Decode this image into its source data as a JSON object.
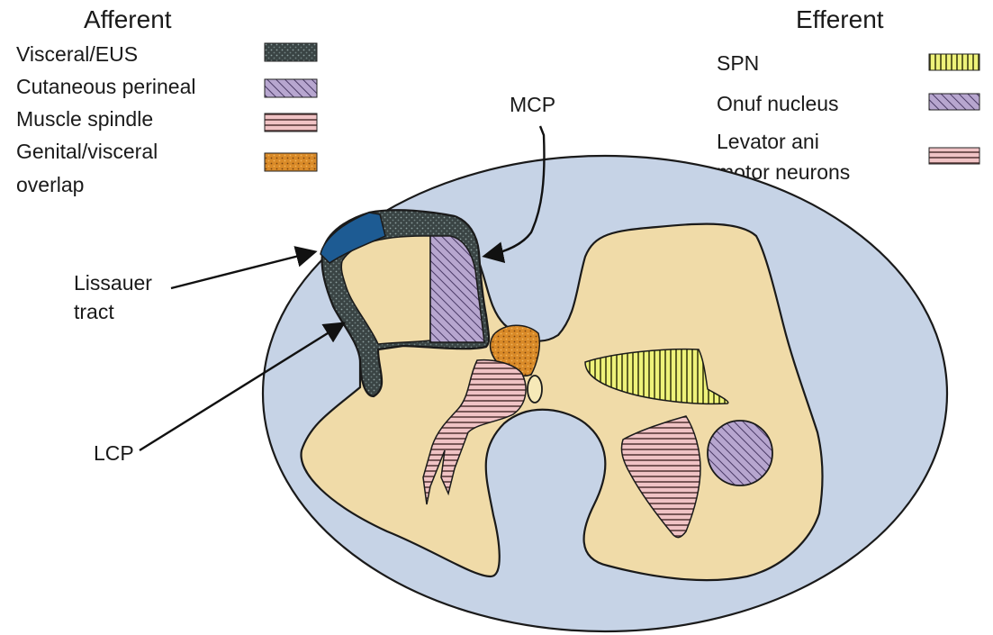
{
  "afferent": {
    "title": "Afferent",
    "items": [
      {
        "lines": [
          "Visceral/EUS"
        ],
        "pattern": "dark-stipple"
      },
      {
        "lines": [
          "Cutaneous perineal"
        ],
        "pattern": "purple-diagonal"
      },
      {
        "lines": [
          "Muscle spindle"
        ],
        "pattern": "pink-horizontal"
      },
      {
        "lines": [
          "Genital/visceral",
          "overlap"
        ],
        "pattern": "orange-stipple"
      }
    ]
  },
  "efferent": {
    "title": "Efferent",
    "items": [
      {
        "lines": [
          "SPN"
        ],
        "pattern": "yellow-vertical"
      },
      {
        "lines": [
          "Onuf nucleus"
        ],
        "pattern": "purple-diagonal"
      },
      {
        "lines": [
          "Levator ani",
          "motor neurons"
        ],
        "pattern": "pink-horizontal"
      }
    ]
  },
  "labels": {
    "mcp": "MCP",
    "lissauer": [
      "Lissauer",
      "tract"
    ],
    "lcp": "LCP"
  },
  "colors": {
    "white_matter": "#c6d3e6",
    "gray_matter": "#f0dba8",
    "dark_stipple": "#3a4444",
    "purple": "#a591c0",
    "pink": "#e8aeb2",
    "orange": "#d98a28",
    "yellow": "#eef27a",
    "lissauer_blue": "#1d5b93"
  }
}
